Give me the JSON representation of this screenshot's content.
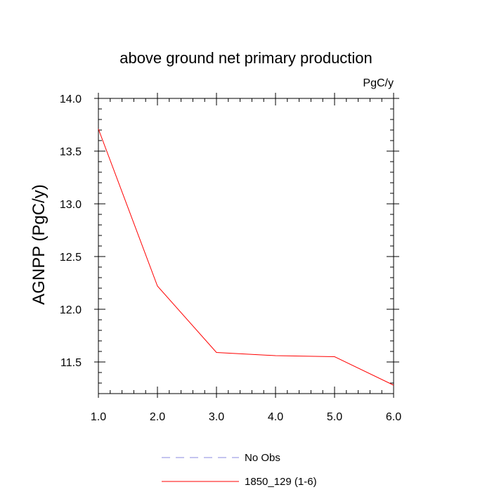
{
  "chart_data": {
    "type": "line",
    "title": "above ground net primary production",
    "units_label": "PgC/y",
    "xlabel": "",
    "ylabel": "AGNPP  (PgC/y)",
    "xlim": [
      1.0,
      6.0
    ],
    "ylim": [
      11.2,
      14.0
    ],
    "x_ticks": [
      "1.0",
      "2.0",
      "3.0",
      "4.0",
      "5.0",
      "6.0"
    ],
    "y_ticks": [
      "11.5",
      "12.0",
      "12.5",
      "13.0",
      "13.5",
      "14.0"
    ],
    "legend_position": "bottom-center",
    "series": [
      {
        "name": "No Obs",
        "color": "#8a8ae0",
        "dash": "dashed",
        "x": [],
        "y": []
      },
      {
        "name": "1850_129 (1-6)",
        "color": "#ff0000",
        "dash": "solid",
        "x": [
          1.0,
          2.0,
          3.0,
          4.0,
          5.0,
          6.0
        ],
        "y": [
          13.71,
          12.22,
          11.59,
          11.56,
          11.55,
          11.28
        ]
      }
    ]
  }
}
